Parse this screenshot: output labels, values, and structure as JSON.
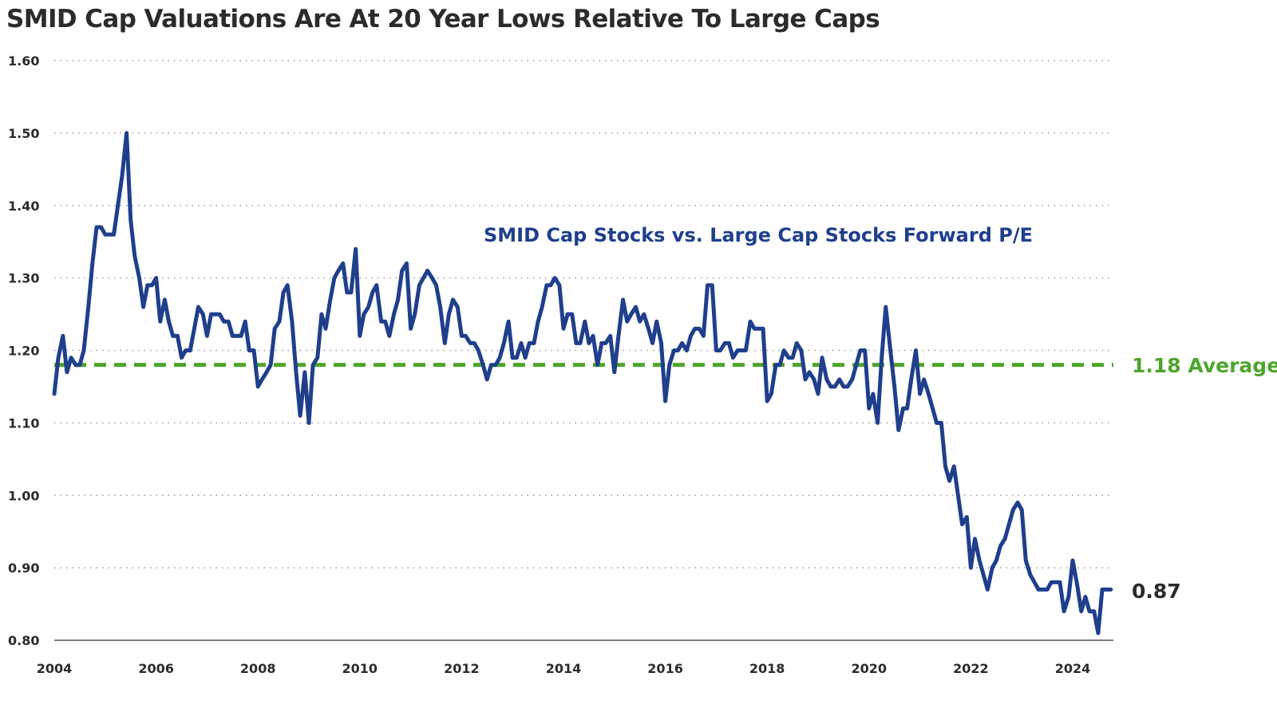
{
  "title": "SMID Cap Valuations Are At 20 Year Lows Relative To Large Caps",
  "chart_data": {
    "type": "line",
    "title": "SMID Cap Valuations Are At 20 Year Lows Relative To Large Caps",
    "xlabel": "",
    "ylabel": "",
    "xlim": [
      2004,
      2024.8
    ],
    "ylim": [
      0.8,
      1.6
    ],
    "y_ticks": [
      "0.80",
      "0.90",
      "1.00",
      "1.10",
      "1.20",
      "1.30",
      "1.40",
      "1.50",
      "1.60"
    ],
    "x_ticks": [
      "2004",
      "2006",
      "2008",
      "2010",
      "2012",
      "2014",
      "2016",
      "2018",
      "2020",
      "2022",
      "2024"
    ],
    "grid": "horizontal dotted",
    "series": [
      {
        "name": "SMID Cap Stocks vs. Large Cap Stocks Forward P/E",
        "color": "#1f3f8c",
        "x": [
          2004.0,
          2004.08,
          2004.17,
          2004.25,
          2004.33,
          2004.42,
          2004.5,
          2004.58,
          2004.67,
          2004.75,
          2004.83,
          2004.92,
          2005.0,
          2005.08,
          2005.17,
          2005.25,
          2005.33,
          2005.42,
          2005.5,
          2005.58,
          2005.67,
          2005.75,
          2005.83,
          2005.92,
          2006.0,
          2006.08,
          2006.17,
          2006.25,
          2006.33,
          2006.42,
          2006.5,
          2006.58,
          2006.67,
          2006.75,
          2006.83,
          2006.92,
          2007.0,
          2007.08,
          2007.17,
          2007.25,
          2007.33,
          2007.42,
          2007.5,
          2007.58,
          2007.67,
          2007.75,
          2007.83,
          2007.92,
          2008.0,
          2008.08,
          2008.17,
          2008.25,
          2008.33,
          2008.42,
          2008.5,
          2008.58,
          2008.67,
          2008.75,
          2008.83,
          2008.92,
          2009.0,
          2009.08,
          2009.17,
          2009.25,
          2009.33,
          2009.42,
          2009.5,
          2009.58,
          2009.67,
          2009.75,
          2009.83,
          2009.92,
          2010.0,
          2010.08,
          2010.17,
          2010.25,
          2010.33,
          2010.42,
          2010.5,
          2010.58,
          2010.67,
          2010.75,
          2010.83,
          2010.92,
          2011.0,
          2011.08,
          2011.17,
          2011.25,
          2011.33,
          2011.42,
          2011.5,
          2011.58,
          2011.67,
          2011.75,
          2011.83,
          2011.92,
          2012.0,
          2012.08,
          2012.17,
          2012.25,
          2012.33,
          2012.42,
          2012.5,
          2012.58,
          2012.67,
          2012.75,
          2012.83,
          2012.92,
          2013.0,
          2013.08,
          2013.17,
          2013.25,
          2013.33,
          2013.42,
          2013.5,
          2013.58,
          2013.67,
          2013.75,
          2013.83,
          2013.92,
          2014.0,
          2014.08,
          2014.17,
          2014.25,
          2014.33,
          2014.42,
          2014.5,
          2014.58,
          2014.67,
          2014.75,
          2014.83,
          2014.92,
          2015.0,
          2015.08,
          2015.17,
          2015.25,
          2015.33,
          2015.42,
          2015.5,
          2015.58,
          2015.67,
          2015.75,
          2015.83,
          2015.92,
          2016.0,
          2016.08,
          2016.17,
          2016.25,
          2016.33,
          2016.42,
          2016.5,
          2016.58,
          2016.67,
          2016.75,
          2016.83,
          2016.92,
          2017.0,
          2017.08,
          2017.17,
          2017.25,
          2017.33,
          2017.42,
          2017.5,
          2017.58,
          2017.67,
          2017.75,
          2017.83,
          2017.92,
          2018.0,
          2018.08,
          2018.17,
          2018.25,
          2018.33,
          2018.42,
          2018.5,
          2018.58,
          2018.67,
          2018.75,
          2018.83,
          2018.92,
          2019.0,
          2019.08,
          2019.17,
          2019.25,
          2019.33,
          2019.42,
          2019.5,
          2019.58,
          2019.67,
          2019.75,
          2019.83,
          2019.92,
          2020.0,
          2020.08,
          2020.17,
          2020.25,
          2020.33,
          2020.42,
          2020.5,
          2020.58,
          2020.67,
          2020.75,
          2020.83,
          2020.92,
          2021.0,
          2021.08,
          2021.17,
          2021.25,
          2021.33,
          2021.42,
          2021.5,
          2021.58,
          2021.67,
          2021.75,
          2021.83,
          2021.92,
          2022.0,
          2022.08,
          2022.17,
          2022.25,
          2022.33,
          2022.42,
          2022.5,
          2022.58,
          2022.67,
          2022.75,
          2022.83,
          2022.92,
          2023.0,
          2023.08,
          2023.17,
          2023.25,
          2023.33,
          2023.42,
          2023.5,
          2023.58,
          2023.67,
          2023.75,
          2023.83,
          2023.92,
          2024.0,
          2024.08,
          2024.17,
          2024.25,
          2024.33,
          2024.42,
          2024.5,
          2024.58,
          2024.67,
          2024.75
        ],
        "y": [
          1.14,
          1.19,
          1.22,
          1.17,
          1.19,
          1.18,
          1.18,
          1.2,
          1.26,
          1.32,
          1.37,
          1.37,
          1.36,
          1.36,
          1.36,
          1.4,
          1.44,
          1.5,
          1.38,
          1.33,
          1.3,
          1.26,
          1.29,
          1.29,
          1.3,
          1.24,
          1.27,
          1.24,
          1.22,
          1.22,
          1.19,
          1.2,
          1.2,
          1.23,
          1.26,
          1.25,
          1.22,
          1.25,
          1.25,
          1.25,
          1.24,
          1.24,
          1.22,
          1.22,
          1.22,
          1.24,
          1.2,
          1.2,
          1.15,
          1.16,
          1.17,
          1.18,
          1.23,
          1.24,
          1.28,
          1.29,
          1.24,
          1.17,
          1.11,
          1.17,
          1.1,
          1.18,
          1.19,
          1.25,
          1.23,
          1.27,
          1.3,
          1.31,
          1.32,
          1.28,
          1.28,
          1.34,
          1.22,
          1.25,
          1.26,
          1.28,
          1.29,
          1.24,
          1.24,
          1.22,
          1.25,
          1.27,
          1.31,
          1.32,
          1.23,
          1.25,
          1.29,
          1.3,
          1.31,
          1.3,
          1.29,
          1.26,
          1.21,
          1.25,
          1.27,
          1.26,
          1.22,
          1.22,
          1.21,
          1.21,
          1.2,
          1.18,
          1.16,
          1.18,
          1.18,
          1.19,
          1.21,
          1.24,
          1.19,
          1.19,
          1.21,
          1.19,
          1.21,
          1.21,
          1.24,
          1.26,
          1.29,
          1.29,
          1.3,
          1.29,
          1.23,
          1.25,
          1.25,
          1.21,
          1.21,
          1.24,
          1.21,
          1.22,
          1.18,
          1.21,
          1.21,
          1.22,
          1.17,
          1.22,
          1.27,
          1.24,
          1.25,
          1.26,
          1.24,
          1.25,
          1.23,
          1.21,
          1.24,
          1.21,
          1.13,
          1.18,
          1.2,
          1.2,
          1.21,
          1.2,
          1.22,
          1.23,
          1.23,
          1.22,
          1.29,
          1.29,
          1.2,
          1.2,
          1.21,
          1.21,
          1.19,
          1.2,
          1.2,
          1.2,
          1.24,
          1.23,
          1.23,
          1.23,
          1.13,
          1.14,
          1.18,
          1.18,
          1.2,
          1.19,
          1.19,
          1.21,
          1.2,
          1.16,
          1.17,
          1.16,
          1.14,
          1.19,
          1.16,
          1.15,
          1.15,
          1.16,
          1.15,
          1.15,
          1.16,
          1.18,
          1.2,
          1.2,
          1.12,
          1.14,
          1.1,
          1.19,
          1.26,
          1.2,
          1.15,
          1.09,
          1.12,
          1.12,
          1.16,
          1.2,
          1.14,
          1.16,
          1.14,
          1.12,
          1.1,
          1.1,
          1.04,
          1.02,
          1.04,
          1.0,
          0.96,
          0.97,
          0.9,
          0.94,
          0.91,
          0.89,
          0.87,
          0.9,
          0.91,
          0.93,
          0.94,
          0.96,
          0.98,
          0.99,
          0.98,
          0.91,
          0.89,
          0.88,
          0.87,
          0.87,
          0.87,
          0.88,
          0.88,
          0.88,
          0.84,
          0.86,
          0.91,
          0.88,
          0.84,
          0.86,
          0.84,
          0.84,
          0.81,
          0.87,
          0.87,
          0.87
        ]
      },
      {
        "name": "1.18 Average",
        "color": "#4ea52b",
        "x": [
          2004.0,
          2024.8
        ],
        "y": [
          1.18,
          1.18
        ]
      }
    ],
    "annotations": [
      {
        "text": "SMID Cap Stocks vs. Large Cap Stocks Forward P/E",
        "color": "#1f3f8c"
      },
      {
        "text": "1.18 Average",
        "color": "#4ea52b"
      },
      {
        "text": "0.87",
        "color": "#2b2b2b"
      }
    ]
  }
}
